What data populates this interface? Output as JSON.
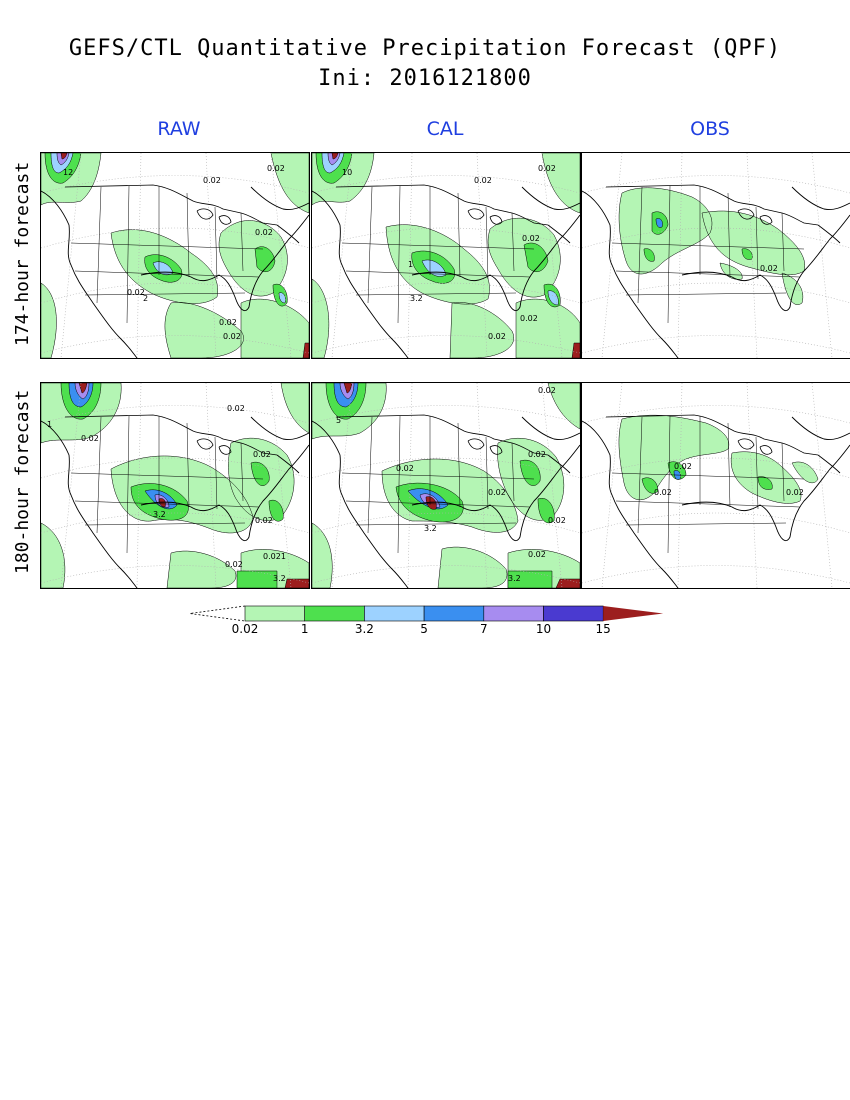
{
  "title": {
    "line1": "GEFS/CTL Quantitative Precipitation Forecast (QPF)",
    "line2": "Ini: 2016121800"
  },
  "columns": [
    "RAW",
    "CAL",
    "OBS"
  ],
  "rows": [
    "174-hour forecast",
    "180-hour forecast"
  ],
  "colors": {
    "column_heading": "#1f3fe0",
    "bins": [
      "#b4f5b4",
      "#4ee04e",
      "#9dd2ff",
      "#3a8ff0",
      "#a78cf0",
      "#4a3ad0",
      "#9c1e1e"
    ]
  },
  "colorbar": {
    "levels": [
      "0.02",
      "1",
      "3.2",
      "5",
      "7",
      "10",
      "15"
    ]
  },
  "contour_labels": {
    "row1_raw": [
      "12",
      "0.02",
      "0.02",
      "0.02",
      "0.02",
      "2",
      "0.02",
      "0.02"
    ],
    "row1_cal": [
      "10",
      "0.02",
      "0.02",
      "0.02",
      "1",
      "3.2",
      "0.02",
      "0.02"
    ],
    "row1_obs": [
      "0.02"
    ],
    "row2_raw": [
      "1",
      "0.02",
      "0.02",
      "0.02",
      "0.02",
      "3.2",
      "0.02",
      "0.021",
      "3.2"
    ],
    "row2_cal": [
      "5",
      "0.02",
      "0.02",
      "0.02",
      "0.02",
      "3.2",
      "0.02",
      "0.02",
      "3.2"
    ],
    "row2_obs": [
      "0.02",
      "0.02",
      "0.02"
    ]
  }
}
